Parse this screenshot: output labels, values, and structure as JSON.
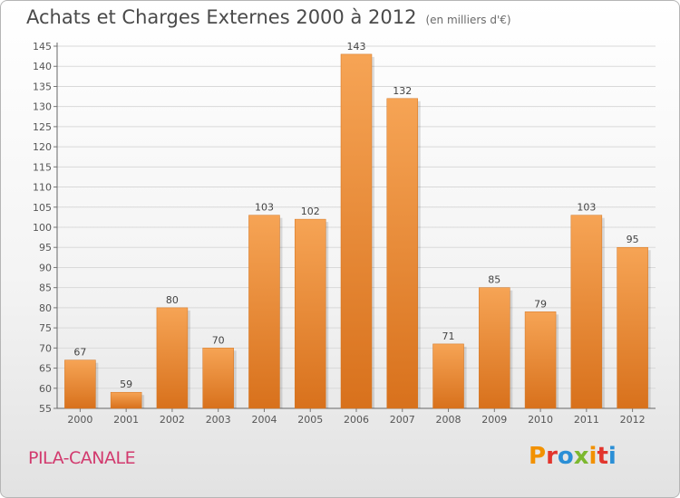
{
  "chart_data": {
    "type": "bar",
    "title": "Achats et Charges Externes 2000 à 2012",
    "subtitle": "(en milliers d'€)",
    "categories": [
      "2000",
      "2001",
      "2002",
      "2003",
      "2004",
      "2005",
      "2006",
      "2007",
      "2008",
      "2009",
      "2010",
      "2011",
      "2012"
    ],
    "values": [
      67,
      59,
      80,
      70,
      103,
      102,
      143,
      132,
      71,
      85,
      79,
      103,
      95
    ],
    "ylim": [
      55,
      145
    ],
    "yticks": [
      55,
      60,
      65,
      70,
      75,
      80,
      85,
      90,
      95,
      100,
      105,
      110,
      115,
      120,
      125,
      130,
      135,
      140,
      145
    ],
    "grid": true,
    "bar_color": "#f0913a"
  },
  "footer": {
    "commune": "PILA-CANALE",
    "logo": "Proxiti"
  },
  "colors": {
    "commune": "#d23a6e",
    "logo_letters": [
      "#f29100",
      "#e2352d",
      "#2b8fd6",
      "#7cb82f",
      "#f29100",
      "#e2352d",
      "#2b8fd6"
    ]
  }
}
